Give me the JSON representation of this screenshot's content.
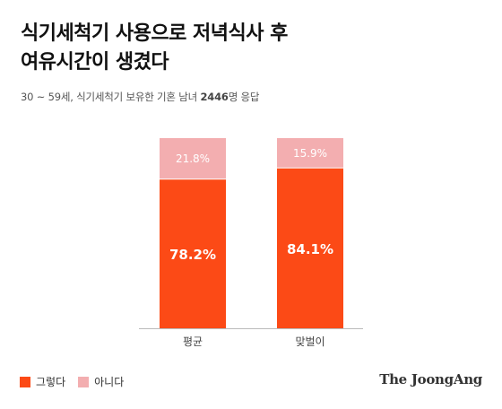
{
  "header": {
    "title_line1": "식기세척기 사용으로 저녁식사 후",
    "title_line2": "여유시간이 생겼다",
    "subtitle_prefix": "30 ~ 59세, 식기세척기 보유한 기혼 남녀 ",
    "subtitle_count": "2446",
    "subtitle_suffix": "명 응답"
  },
  "legend": {
    "yes_label": "그렇다",
    "no_label": "아니다"
  },
  "brand": "The JoongAng",
  "colors": {
    "yes": "#fc4a16",
    "no": "#f3aeb0",
    "axis": "#bbbbbb"
  },
  "chart_data": {
    "type": "bar",
    "stacked": true,
    "categories": [
      "평균",
      "맞벌이"
    ],
    "series": [
      {
        "name": "그렇다",
        "values": [
          78.2,
          84.1
        ],
        "labels": [
          "78.2%",
          "84.1%"
        ]
      },
      {
        "name": "아니다",
        "values": [
          21.8,
          15.9
        ],
        "labels": [
          "21.8%",
          "15.9%"
        ]
      }
    ],
    "ylim": [
      0,
      100
    ],
    "legend_position": "bottom-left"
  }
}
